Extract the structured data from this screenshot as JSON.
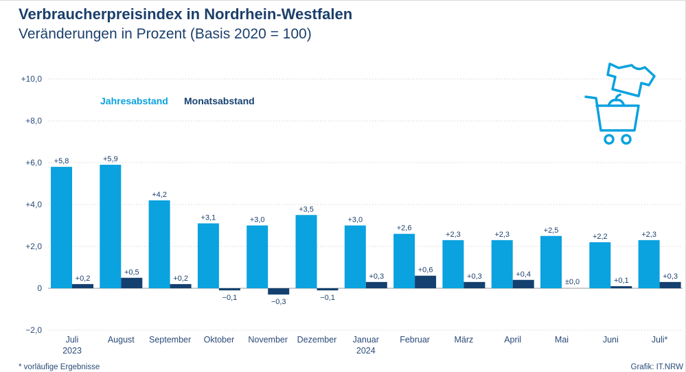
{
  "header": {
    "title": "Verbraucherpreisindex in Nordrhein-Westfalen",
    "subtitle": "Veränderungen in Prozent (Basis 2020 = 100)"
  },
  "footer": {
    "footnote": "*  vorläufige Ergebnisse",
    "source": "Grafik: IT.NRW"
  },
  "colors": {
    "jahresabstand": "#0aa2df",
    "monatsabstand": "#14406f",
    "gridline": "#c8c8c8",
    "axis_text": "#2a4a78",
    "icon": "#0aa2df"
  },
  "icon": "shopping-cart-with-shirt-icon",
  "chart_data": {
    "type": "bar",
    "title": "Verbraucherpreisindex in Nordrhein-Westfalen",
    "subtitle": "Veränderungen in Prozent (Basis 2020 = 100)",
    "categories": [
      "Juli",
      "August",
      "September",
      "Oktober",
      "November",
      "Dezember",
      "Januar",
      "Februar",
      "März",
      "April",
      "Mai",
      "Juni",
      "Juli*"
    ],
    "category_sublabels": [
      "2023",
      "",
      "",
      "",
      "",
      "",
      "2024",
      "",
      "",
      "",
      "",
      "",
      ""
    ],
    "series": [
      {
        "name": "Jahresabstand",
        "values": [
          5.8,
          5.9,
          4.2,
          3.1,
          3.0,
          3.5,
          3.0,
          2.6,
          2.3,
          2.3,
          2.5,
          2.2,
          2.3
        ],
        "labels": [
          "+5,8",
          "+5,9",
          "+4,2",
          "+3,1",
          "+3,0",
          "+3,5",
          "+3,0",
          "+2,6",
          "+2,3",
          "+2,3",
          "+2,5",
          "+2,2",
          "+2,3"
        ]
      },
      {
        "name": "Monatsabstand",
        "values": [
          0.2,
          0.5,
          0.2,
          -0.1,
          -0.3,
          -0.1,
          0.3,
          0.6,
          0.3,
          0.4,
          0.0,
          0.1,
          0.3
        ],
        "labels": [
          "+0,2",
          "+0,5",
          "+0,2",
          "−0,1",
          "−0,3",
          "−0,1",
          "+0,3",
          "+0,6",
          "+0,3",
          "+0,4",
          "±0,0",
          "+0,1",
          "+0,3"
        ]
      }
    ],
    "ylim": [
      -2.0,
      10.0
    ],
    "yticks": [
      -2.0,
      0,
      2.0,
      4.0,
      6.0,
      8.0,
      10.0
    ],
    "ytick_labels": [
      "−2,0",
      "0",
      "+2,0",
      "+4,0",
      "+6,0",
      "+8,0",
      "+10,0"
    ],
    "grid": true,
    "legend_position": "top-left",
    "xlabel": "",
    "ylabel": ""
  }
}
